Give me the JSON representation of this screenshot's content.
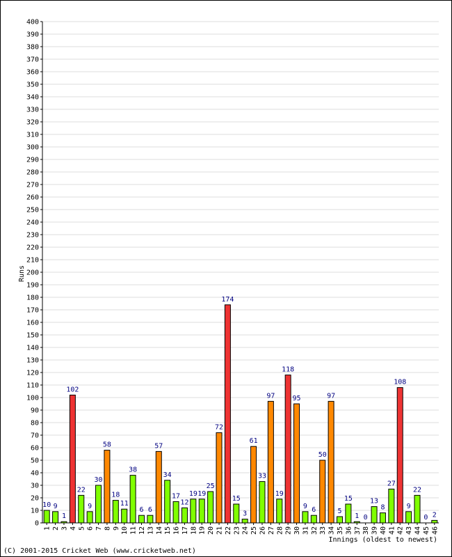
{
  "chart_data": {
    "type": "bar",
    "xlabel": "Innings (oldest to newest)",
    "ylabel": "Runs",
    "ylim": [
      0,
      400
    ],
    "ytick_step": 10,
    "grid": true,
    "categories": [
      "1",
      "2",
      "3",
      "4",
      "5",
      "6",
      "7",
      "8",
      "9",
      "10",
      "11",
      "12",
      "13",
      "14",
      "15",
      "16",
      "17",
      "18",
      "19",
      "20",
      "21",
      "22",
      "23",
      "24",
      "25",
      "26",
      "27",
      "28",
      "29",
      "30",
      "31",
      "32",
      "33",
      "34",
      "35",
      "36",
      "37",
      "38",
      "39",
      "40",
      "41",
      "42",
      "43",
      "44",
      "45",
      "46"
    ],
    "values": [
      10,
      9,
      1,
      102,
      22,
      9,
      30,
      58,
      18,
      11,
      38,
      6,
      6,
      57,
      34,
      17,
      12,
      19,
      19,
      25,
      72,
      174,
      15,
      3,
      61,
      33,
      97,
      19,
      118,
      95,
      9,
      6,
      50,
      97,
      5,
      15,
      1,
      0,
      13,
      8,
      27,
      108,
      9,
      22,
      0,
      2
    ],
    "colors": {
      "under_50": "#80ff00",
      "fifty": "#ff8800",
      "hundred": "#ee3333",
      "label": "#000080",
      "grid": "#dddddd"
    }
  },
  "footer": {
    "copyright": "(C) 2001-2015 Cricket Web (www.cricketweb.net)"
  }
}
